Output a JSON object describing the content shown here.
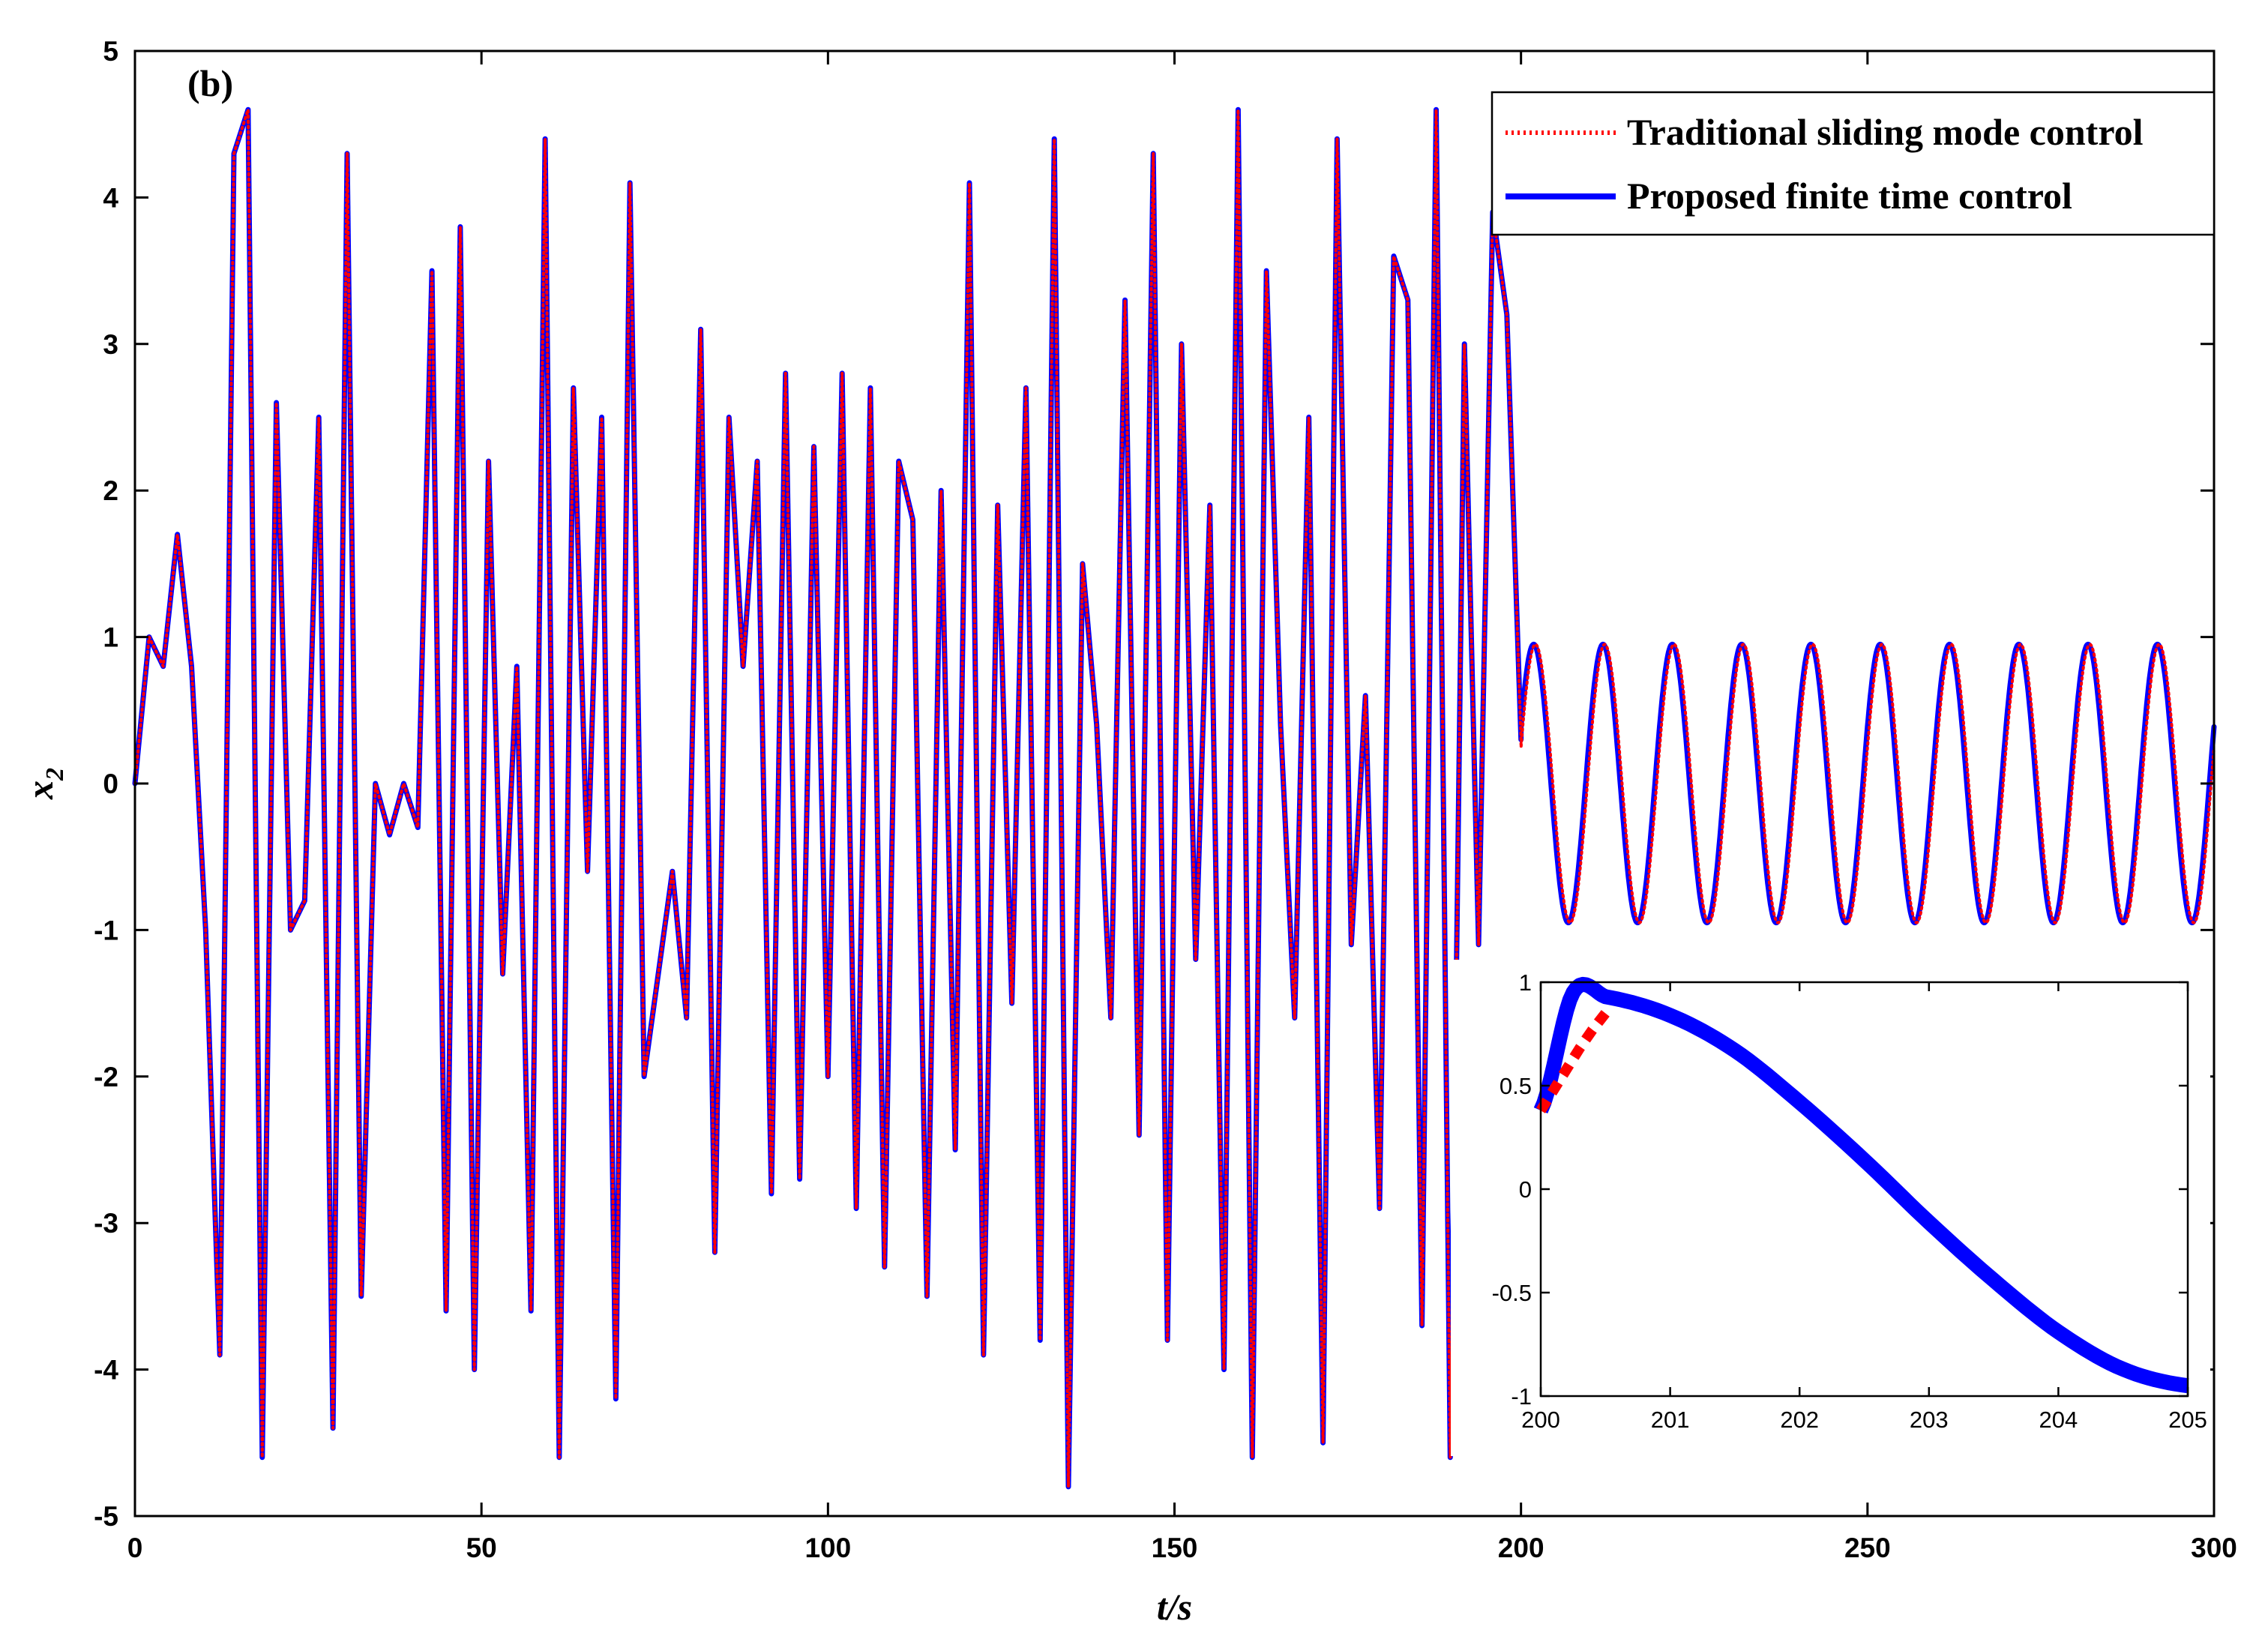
{
  "chart_data": [
    {
      "type": "line",
      "panel_label": "(b)",
      "xlabel": "t/s",
      "ylabel": {
        "base": "x",
        "subscript": "2"
      },
      "xlim": [
        0,
        300
      ],
      "ylim": [
        -5,
        5
      ],
      "xticks": [
        "0",
        "50",
        "100",
        "150",
        "200",
        "250",
        "300"
      ],
      "yticks": [
        "5",
        "4",
        "3",
        "2",
        "1",
        "0",
        "-1",
        "-2",
        "-3",
        "-4",
        "-5"
      ],
      "grid": false,
      "legend_position": "top-right",
      "series": [
        {
          "name": "Traditional sliding mode control",
          "color": "#ff0000",
          "style": "dotted",
          "chaotic_segment": {
            "t_start": 0,
            "t_end": 200,
            "x": [
              0.0,
              1.0,
              0.8,
              1.7,
              0.8,
              -1.0,
              -3.9,
              4.3,
              4.6,
              -4.6,
              2.6,
              -1.0,
              -0.8,
              2.5,
              -4.4,
              4.3,
              -3.5,
              0.0,
              -0.35,
              0.0,
              -0.3,
              3.5,
              -3.6,
              3.8,
              -4.0,
              2.2,
              -1.3,
              0.8,
              -3.6,
              4.4,
              -4.6,
              2.7,
              -0.6,
              2.5,
              -4.2,
              4.1,
              -2.0,
              -1.3,
              -0.6,
              -1.6,
              3.1,
              -3.2,
              2.5,
              0.8,
              2.2,
              -2.8,
              2.8,
              -2.7,
              2.3,
              -2.0,
              2.8,
              -2.9,
              2.7,
              -3.3,
              2.2,
              1.8,
              -3.5,
              2.0,
              -2.5,
              4.1,
              -3.9,
              1.9,
              -1.5,
              2.7,
              -3.8,
              4.4,
              -4.8,
              1.5,
              0.4,
              -1.6,
              3.3,
              -2.4,
              4.3,
              -3.8,
              3.0,
              -1.2,
              1.9,
              -4.0,
              4.6,
              -4.6,
              3.5,
              0.4,
              -1.6,
              2.5,
              -4.5,
              4.4,
              -1.1,
              0.6,
              -2.9,
              3.6,
              3.3,
              -3.7,
              4.6,
              -4.6,
              3.0,
              -1.1,
              3.9,
              3.2,
              0.3
            ]
          },
          "settled_segment": {
            "t_start": 200,
            "t_end": 300,
            "amplitude": 0.95,
            "period": 10.0,
            "phase_offset_s": 0.25
          }
        },
        {
          "name": "Proposed finite time control",
          "color": "#0000ff",
          "style": "solid",
          "chaotic_segment": {
            "t_start": 0,
            "t_end": 200,
            "x": [
              0.0,
              1.0,
              0.8,
              1.7,
              0.8,
              -1.0,
              -3.9,
              4.3,
              4.6,
              -4.6,
              2.6,
              -1.0,
              -0.8,
              2.5,
              -4.4,
              4.3,
              -3.5,
              0.0,
              -0.35,
              0.0,
              -0.3,
              3.5,
              -3.6,
              3.8,
              -4.0,
              2.2,
              -1.3,
              0.8,
              -3.6,
              4.4,
              -4.6,
              2.7,
              -0.6,
              2.5,
              -4.2,
              4.1,
              -2.0,
              -1.3,
              -0.6,
              -1.6,
              3.1,
              -3.2,
              2.5,
              0.8,
              2.2,
              -2.8,
              2.8,
              -2.7,
              2.3,
              -2.0,
              2.8,
              -2.9,
              2.7,
              -3.3,
              2.2,
              1.8,
              -3.5,
              2.0,
              -2.5,
              4.1,
              -3.9,
              1.9,
              -1.5,
              2.7,
              -3.8,
              4.4,
              -4.8,
              1.5,
              0.4,
              -1.6,
              3.3,
              -2.4,
              4.3,
              -3.8,
              3.0,
              -1.2,
              1.9,
              -4.0,
              4.6,
              -4.6,
              3.5,
              0.4,
              -1.6,
              2.5,
              -4.5,
              4.4,
              -1.1,
              0.6,
              -2.9,
              3.6,
              3.3,
              -3.7,
              4.6,
              -4.6,
              3.0,
              -1.1,
              3.9,
              3.2,
              0.3
            ]
          },
          "settled_segment": {
            "t_start": 200,
            "t_end": 300,
            "amplitude": 0.95,
            "period": 10.0,
            "phase_offset_s": 0.0
          }
        }
      ]
    },
    {
      "type": "line",
      "role": "inset",
      "xlim": [
        200,
        205
      ],
      "ylim": [
        -1,
        1
      ],
      "xticks": [
        "200",
        "201",
        "202",
        "203",
        "204",
        "205"
      ],
      "yticks": [
        "1",
        "0.5",
        "0",
        "-0.5",
        "-1"
      ],
      "series": [
        {
          "name": "Traditional sliding mode control",
          "color": "#ff0000",
          "style": "dashed",
          "x": [
            200.0,
            200.1,
            200.2,
            200.3,
            200.4,
            200.5
          ],
          "y": [
            0.38,
            0.48,
            0.58,
            0.68,
            0.77,
            0.85
          ]
        },
        {
          "name": "Proposed finite time control",
          "color": "#0000ff",
          "style": "solid",
          "x": [
            200.0,
            200.25,
            200.5,
            201.0,
            201.5,
            202.0,
            202.5,
            203.0,
            203.5,
            204.0,
            204.5,
            205.0
          ],
          "y": [
            0.38,
            0.95,
            0.93,
            0.84,
            0.67,
            0.42,
            0.14,
            -0.16,
            -0.44,
            -0.69,
            -0.87,
            -0.95
          ]
        }
      ]
    }
  ]
}
